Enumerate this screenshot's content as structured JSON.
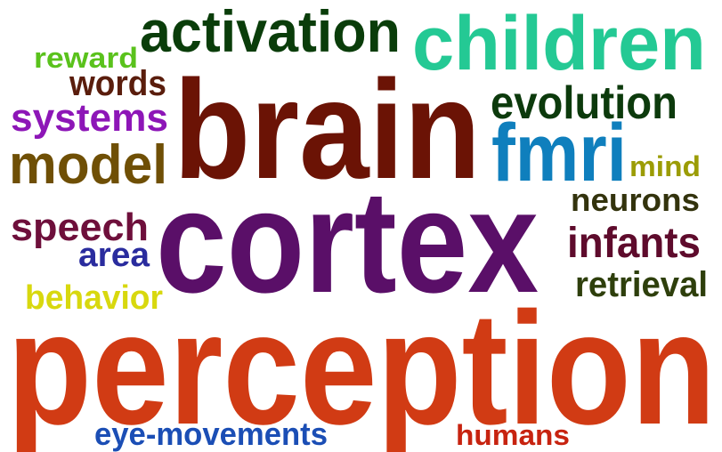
{
  "words": [
    {
      "text": "perception",
      "color": "#d13b14"
    },
    {
      "text": "cortex",
      "color": "#5a0f68"
    },
    {
      "text": "brain",
      "color": "#6b1305"
    },
    {
      "text": "children",
      "color": "#24c994"
    },
    {
      "text": "activation",
      "color": "#0a3d0a"
    },
    {
      "text": "fmri",
      "color": "#0f7fbd"
    },
    {
      "text": "evolution",
      "color": "#0c3a0c"
    },
    {
      "text": "model",
      "color": "#6f4f05"
    },
    {
      "text": "systems",
      "color": "#8d16b7"
    },
    {
      "text": "words",
      "color": "#5a1d0c"
    },
    {
      "text": "reward",
      "color": "#5ac21c"
    },
    {
      "text": "speech",
      "color": "#6e0f3b"
    },
    {
      "text": "area",
      "color": "#2a2c9e"
    },
    {
      "text": "behavior",
      "color": "#d8d80e"
    },
    {
      "text": "mind",
      "color": "#9b9c05"
    },
    {
      "text": "neurons",
      "color": "#33330d"
    },
    {
      "text": "infants",
      "color": "#5e0b2c"
    },
    {
      "text": "retrieval",
      "color": "#2e3f0c"
    },
    {
      "text": "eye-movements",
      "color": "#1b4eb5"
    },
    {
      "text": "humans",
      "color": "#c72310"
    }
  ]
}
